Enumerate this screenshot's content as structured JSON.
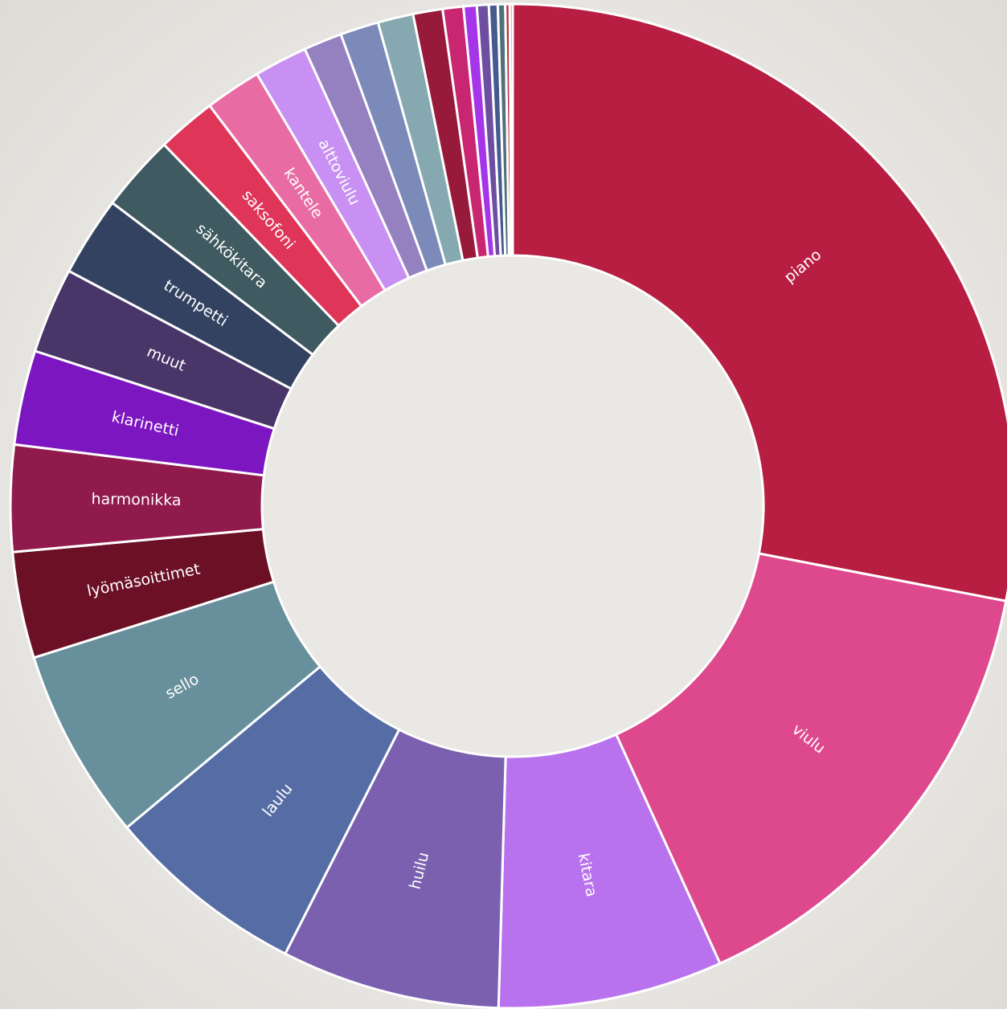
{
  "chart_data": {
    "type": "pie",
    "donut": true,
    "title": "",
    "slices": [
      {
        "label": "piano",
        "value": 29.5,
        "color": "#b81d42"
      },
      {
        "label": "viulu",
        "value": 16.0,
        "color": "#de498d"
      },
      {
        "label": "kitara",
        "value": 7.6,
        "color": "#b972ed"
      },
      {
        "label": "huilu",
        "value": 7.4,
        "color": "#7b60b0"
      },
      {
        "label": "laulu",
        "value": 6.8,
        "color": "#566ca4"
      },
      {
        "label": "sello",
        "value": 6.5,
        "color": "#68909c"
      },
      {
        "label": "lyömäsoittimet",
        "value": 3.6,
        "color": "#6b1025"
      },
      {
        "label": "harmonikka",
        "value": 3.6,
        "color": "#911a4c"
      },
      {
        "label": "klarinetti",
        "value": 3.2,
        "color": "#7b16c0"
      },
      {
        "label": "muut",
        "value": 2.9,
        "color": "#4a3569"
      },
      {
        "label": "trumpetti",
        "value": 2.7,
        "color": "#344262"
      },
      {
        "label": "sähkökitara",
        "value": 2.6,
        "color": "#3f5a60"
      },
      {
        "label": "saksofoni",
        "value": 2.0,
        "color": "#de3558"
      },
      {
        "label": "kantele",
        "value": 1.9,
        "color": "#e86ca3"
      },
      {
        "label": "alttoviulu",
        "value": 1.8,
        "color": "#c790f2"
      },
      {
        "label": "",
        "value": 1.3,
        "color": "#9580c0"
      },
      {
        "label": "",
        "value": 1.3,
        "color": "#7b8ab8"
      },
      {
        "label": "",
        "value": 1.2,
        "color": "#86a8b0"
      },
      {
        "label": "",
        "value": 1.0,
        "color": "#981a3a"
      },
      {
        "label": "",
        "value": 0.7,
        "color": "#c92672"
      },
      {
        "label": "",
        "value": 0.45,
        "color": "#a634e8"
      },
      {
        "label": "",
        "value": 0.4,
        "color": "#6d4ea0"
      },
      {
        "label": "",
        "value": 0.3,
        "color": "#455a8e"
      },
      {
        "label": "",
        "value": 0.25,
        "color": "#50707a"
      },
      {
        "label": "",
        "value": 0.15,
        "color": "#c02a3a"
      },
      {
        "label": "",
        "value": 0.1,
        "color": "#d8607a"
      }
    ]
  }
}
